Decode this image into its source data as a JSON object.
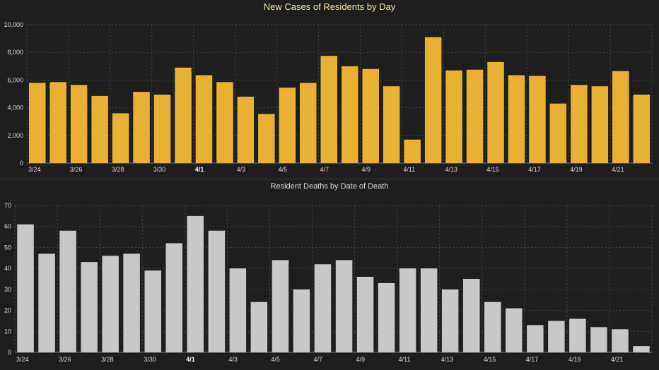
{
  "chart_data": [
    {
      "type": "bar",
      "title": "New Cases of Residents by Day",
      "xlabel": "",
      "ylabel": "",
      "ylim": [
        0,
        10000
      ],
      "yticks": [
        "0",
        "2,000",
        "4,000",
        "6,000",
        "8,000",
        "10,000"
      ],
      "categories": [
        "3/24",
        "3/25",
        "3/26",
        "3/27",
        "3/28",
        "3/29",
        "3/30",
        "3/31",
        "4/1",
        "4/2",
        "4/3",
        "4/4",
        "4/5",
        "4/6",
        "4/7",
        "4/8",
        "4/9",
        "4/10",
        "4/11",
        "4/12",
        "4/13",
        "4/14",
        "4/15",
        "4/16",
        "4/17",
        "4/18",
        "4/19",
        "4/20",
        "4/21",
        "4/22"
      ],
      "x_tick_labels": [
        "3/24",
        "3/26",
        "3/28",
        "3/30",
        "4/1",
        "4/3",
        "4/5",
        "4/7",
        "4/9",
        "4/11",
        "4/13",
        "4/15",
        "4/17",
        "4/19",
        "4/21"
      ],
      "bold_tick_labels": [
        "4/1"
      ],
      "values": [
        5800,
        5850,
        5650,
        4850,
        3600,
        5150,
        4950,
        6900,
        6350,
        5850,
        4800,
        3550,
        5450,
        5800,
        7750,
        7000,
        6800,
        5550,
        1700,
        9100,
        6700,
        6750,
        7300,
        6350,
        6300,
        4300,
        5650,
        5550,
        6650,
        4950
      ],
      "bar_color": "#e8b134",
      "grid": true
    },
    {
      "type": "bar",
      "title": "Resident Deaths by Date of Death",
      "xlabel": "",
      "ylabel": "",
      "ylim": [
        0,
        70
      ],
      "yticks": [
        "0",
        "10",
        "20",
        "30",
        "40",
        "50",
        "60",
        "70"
      ],
      "categories": [
        "3/24",
        "3/25",
        "3/26",
        "3/27",
        "3/28",
        "3/29",
        "3/30",
        "3/31",
        "4/1",
        "4/2",
        "4/3",
        "4/4",
        "4/5",
        "4/6",
        "4/7",
        "4/8",
        "4/9",
        "4/10",
        "4/11",
        "4/12",
        "4/13",
        "4/14",
        "4/15",
        "4/16",
        "4/17",
        "4/18",
        "4/19",
        "4/20",
        "4/21",
        "4/22"
      ],
      "x_tick_labels": [
        "3/24",
        "3/26",
        "3/28",
        "3/30",
        "4/1",
        "4/3",
        "4/5",
        "4/7",
        "4/9",
        "4/11",
        "4/13",
        "4/15",
        "4/17",
        "4/19",
        "4/21"
      ],
      "bold_tick_labels": [
        "4/1"
      ],
      "values": [
        61,
        47,
        58,
        43,
        46,
        47,
        39,
        52,
        65,
        58,
        40,
        24,
        44,
        30,
        42,
        44,
        36,
        33,
        40,
        40,
        30,
        35,
        24,
        21,
        13,
        15,
        16,
        12,
        11,
        3
      ],
      "bar_color": "#c8c8c8",
      "grid": true
    }
  ]
}
